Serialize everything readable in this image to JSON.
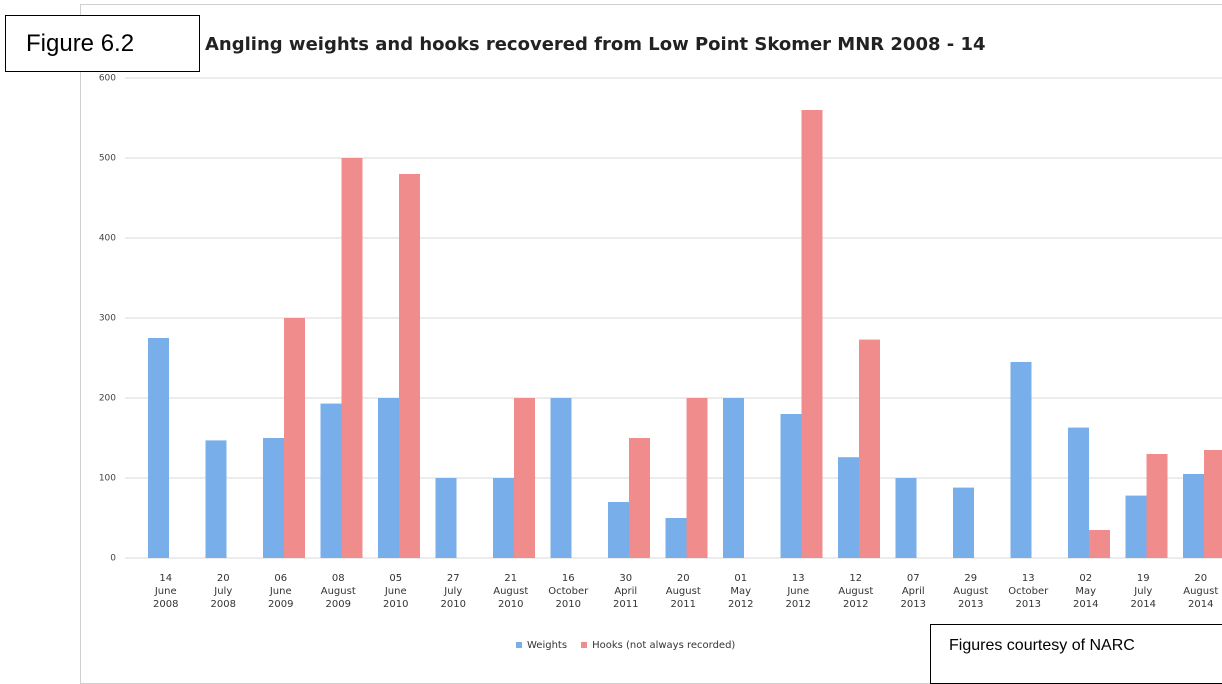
{
  "chart_data": {
    "type": "bar",
    "title": "Angling weights and hooks recovered from Low Point Skomer MNR 2008 - 14",
    "annotations": [
      "Figure 6.2",
      "Figures courtesy of NARC"
    ],
    "categories": [
      "14 June 2008",
      "20 July 2008",
      "06 June 2009",
      "08 August 2009",
      "05 June 2010",
      "27 July 2010",
      "21 August 2010",
      "16 October 2010",
      "30 April 2011",
      "20 August 2011",
      "01 May 2012",
      "13 June 2012",
      "12 August 2012",
      "07 April 2013",
      "29 August 2013",
      "13 October 2013",
      "02 May 2014",
      "19 July 2014",
      "20 August 2014"
    ],
    "series": [
      {
        "name": "Weights",
        "color": "#78aeea",
        "values": [
          275,
          147,
          150,
          193,
          200,
          100,
          100,
          200,
          70,
          50,
          200,
          180,
          126,
          100,
          88,
          245,
          163,
          78,
          105
        ]
      },
      {
        "name": "Hooks (not always recorded)",
        "color": "#f08c8c",
        "values": [
          null,
          null,
          300,
          500,
          480,
          null,
          200,
          null,
          150,
          200,
          null,
          560,
          273,
          null,
          null,
          null,
          35,
          130,
          135
        ]
      }
    ],
    "ylim": [
      0,
      600
    ],
    "yticks": [
      0,
      100,
      200,
      300,
      400,
      500,
      600
    ],
    "grid": true
  }
}
